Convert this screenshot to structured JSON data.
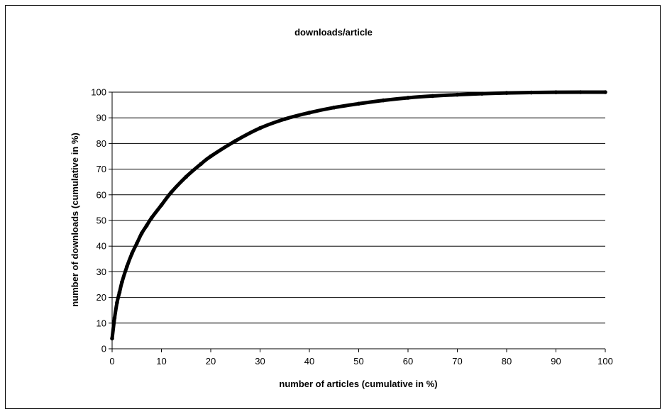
{
  "chart_data": {
    "type": "line",
    "title": "downloads/article",
    "xlabel": "number of articles (cumulative in %)",
    "ylabel": "number of downloads (cumulative in %)",
    "xlim": [
      0,
      100
    ],
    "ylim": [
      0,
      100
    ],
    "x_ticks": [
      0,
      10,
      20,
      30,
      40,
      50,
      60,
      70,
      80,
      90,
      100
    ],
    "y_ticks": [
      0,
      10,
      20,
      30,
      40,
      50,
      60,
      70,
      80,
      90,
      100
    ],
    "grid": "horizontal",
    "series": [
      {
        "color": "#000000",
        "x": [
          0,
          0.5,
          1,
          1.5,
          2,
          3,
          4,
          5,
          6,
          7,
          8,
          10,
          12,
          15,
          18,
          20,
          25,
          30,
          35,
          40,
          45,
          50,
          55,
          60,
          65,
          70,
          75,
          80,
          85,
          90,
          95,
          100
        ],
        "y": [
          4,
          12,
          18,
          22,
          26,
          32,
          37,
          41,
          45,
          48,
          51,
          56,
          61,
          67,
          72,
          75,
          81,
          86,
          89.5,
          92,
          94,
          95.5,
          96.8,
          97.8,
          98.5,
          99,
          99.4,
          99.7,
          99.85,
          99.95,
          100,
          100
        ]
      }
    ]
  }
}
